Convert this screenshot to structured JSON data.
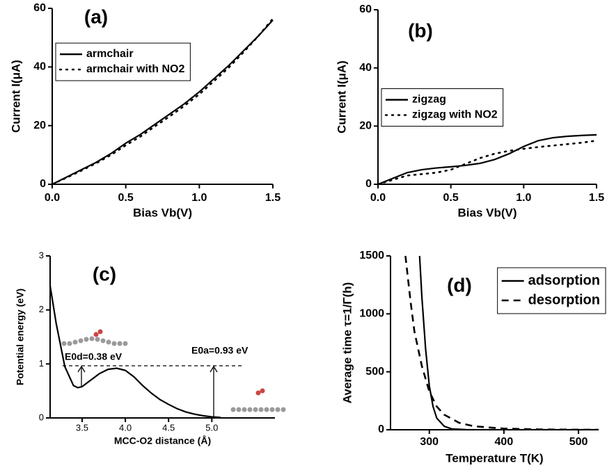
{
  "chart_data": [
    {
      "type": "line",
      "label": "(a)",
      "xlabel": "Bias Vb(V)",
      "ylabel": "Current I(μA)",
      "x": [
        0,
        0.1,
        0.2,
        0.3,
        0.4,
        0.5,
        0.6,
        0.7,
        0.8,
        0.9,
        1.0,
        1.1,
        1.2,
        1.3,
        1.4,
        1.5
      ],
      "xlim": [
        0,
        1.5
      ],
      "ylim": [
        0,
        60
      ],
      "xticks": [
        {
          "value": 0,
          "label": "0.0"
        },
        0.5,
        {
          "value": 1,
          "label": "1.0"
        },
        1.5
      ],
      "yticks": [
        0,
        20,
        40,
        60
      ],
      "legend": "upper left",
      "series": [
        {
          "name": "armchair",
          "color": "#000000",
          "style": "solid",
          "values": [
            0,
            2.5,
            5,
            7.5,
            10.5,
            14,
            17,
            20.5,
            24,
            27.5,
            31.5,
            36,
            40.5,
            45.5,
            50.5,
            56
          ]
        },
        {
          "name": "armchair with NO2",
          "color": "#000000",
          "style": "dotted",
          "values": [
            0,
            2.3,
            4.7,
            7.2,
            10,
            13.3,
            16.3,
            19.8,
            23.2,
            26.8,
            30.7,
            35.2,
            39.8,
            45,
            50.5,
            56.5
          ]
        }
      ]
    },
    {
      "type": "line",
      "label": "(b)",
      "xlabel": "Bias Vb(V)",
      "ylabel": "Current I(μA)",
      "x": [
        0,
        0.1,
        0.2,
        0.3,
        0.4,
        0.5,
        0.6,
        0.7,
        0.8,
        0.9,
        1.0,
        1.1,
        1.2,
        1.3,
        1.4,
        1.5
      ],
      "xlim": [
        0,
        1.5
      ],
      "ylim": [
        0,
        60
      ],
      "xticks": [
        {
          "value": 0,
          "label": "0.0"
        },
        0.5,
        {
          "value": 1,
          "label": "1.0"
        },
        1.5
      ],
      "yticks": [
        0,
        20,
        40,
        60
      ],
      "legend": "center left",
      "series": [
        {
          "name": "zigzag",
          "color": "#000000",
          "style": "solid",
          "values": [
            0,
            2,
            4,
            5,
            5.6,
            6,
            6.5,
            7.2,
            8.5,
            10.5,
            13,
            15,
            16,
            16.5,
            16.8,
            17
          ]
        },
        {
          "name": "zigzag with NO2",
          "color": "#000000",
          "style": "dotted",
          "values": [
            0,
            1.5,
            3,
            3.5,
            4,
            5,
            7,
            9,
            10.5,
            11.5,
            12.2,
            12.8,
            13.3,
            13.8,
            14.3,
            15
          ]
        }
      ]
    },
    {
      "type": "line",
      "label": "(c)",
      "xlabel": "MCC-O2 distance (Å)",
      "ylabel": "Potential energy (eV)",
      "x": [
        3.13,
        3.2,
        3.3,
        3.4,
        3.45,
        3.5,
        3.6,
        3.7,
        3.8,
        3.9,
        4.0,
        4.1,
        4.2,
        4.3,
        4.4,
        4.5,
        4.6,
        4.7,
        4.8,
        4.9,
        5.0,
        5.1
      ],
      "xlim": [
        3.13,
        5.73
      ],
      "ylim": [
        0,
        3
      ],
      "xticks": [
        3.5,
        {
          "value": 4,
          "label": "4.0"
        },
        4.5,
        {
          "value": 5,
          "label": "5.0"
        }
      ],
      "yticks": [
        0,
        1,
        2,
        3
      ],
      "annotations": [
        "E0d=0.38 eV",
        "E0a=0.93 eV"
      ],
      "series": [
        {
          "color": "#000000",
          "style": "solid",
          "values": [
            2.45,
            1.75,
            0.95,
            0.6,
            0.56,
            0.58,
            0.7,
            0.82,
            0.9,
            0.92,
            0.88,
            0.76,
            0.6,
            0.46,
            0.34,
            0.25,
            0.17,
            0.11,
            0.07,
            0.04,
            0.02,
            0.01
          ]
        }
      ]
    },
    {
      "type": "line",
      "label": "(d)",
      "xlabel": "Temperature T(K)",
      "ylabel": "Average time τ=1/Γ(h)",
      "xlim": [
        248,
        527
      ],
      "ylim": [
        0,
        1500
      ],
      "xticks": [
        300,
        400,
        500
      ],
      "yticks": [
        0,
        500,
        1000,
        1500
      ],
      "legend": "upper right",
      "series": [
        {
          "name": "adsorption",
          "color": "#000000",
          "style": "solid",
          "x": [
            287,
            290,
            295,
            300,
            305,
            310,
            320,
            330,
            350,
            400,
            527
          ],
          "values": [
            1500,
            1150,
            700,
            380,
            200,
            100,
            30,
            8,
            1,
            0,
            0
          ]
        },
        {
          "name": "desorption",
          "color": "#000000",
          "style": "dashed",
          "x": [
            268,
            275,
            280,
            290,
            300,
            310,
            320,
            340,
            360,
            400,
            450,
            500,
            527
          ],
          "values": [
            1500,
            1100,
            850,
            550,
            330,
            200,
            130,
            60,
            30,
            10,
            3,
            1,
            0
          ]
        }
      ]
    }
  ]
}
